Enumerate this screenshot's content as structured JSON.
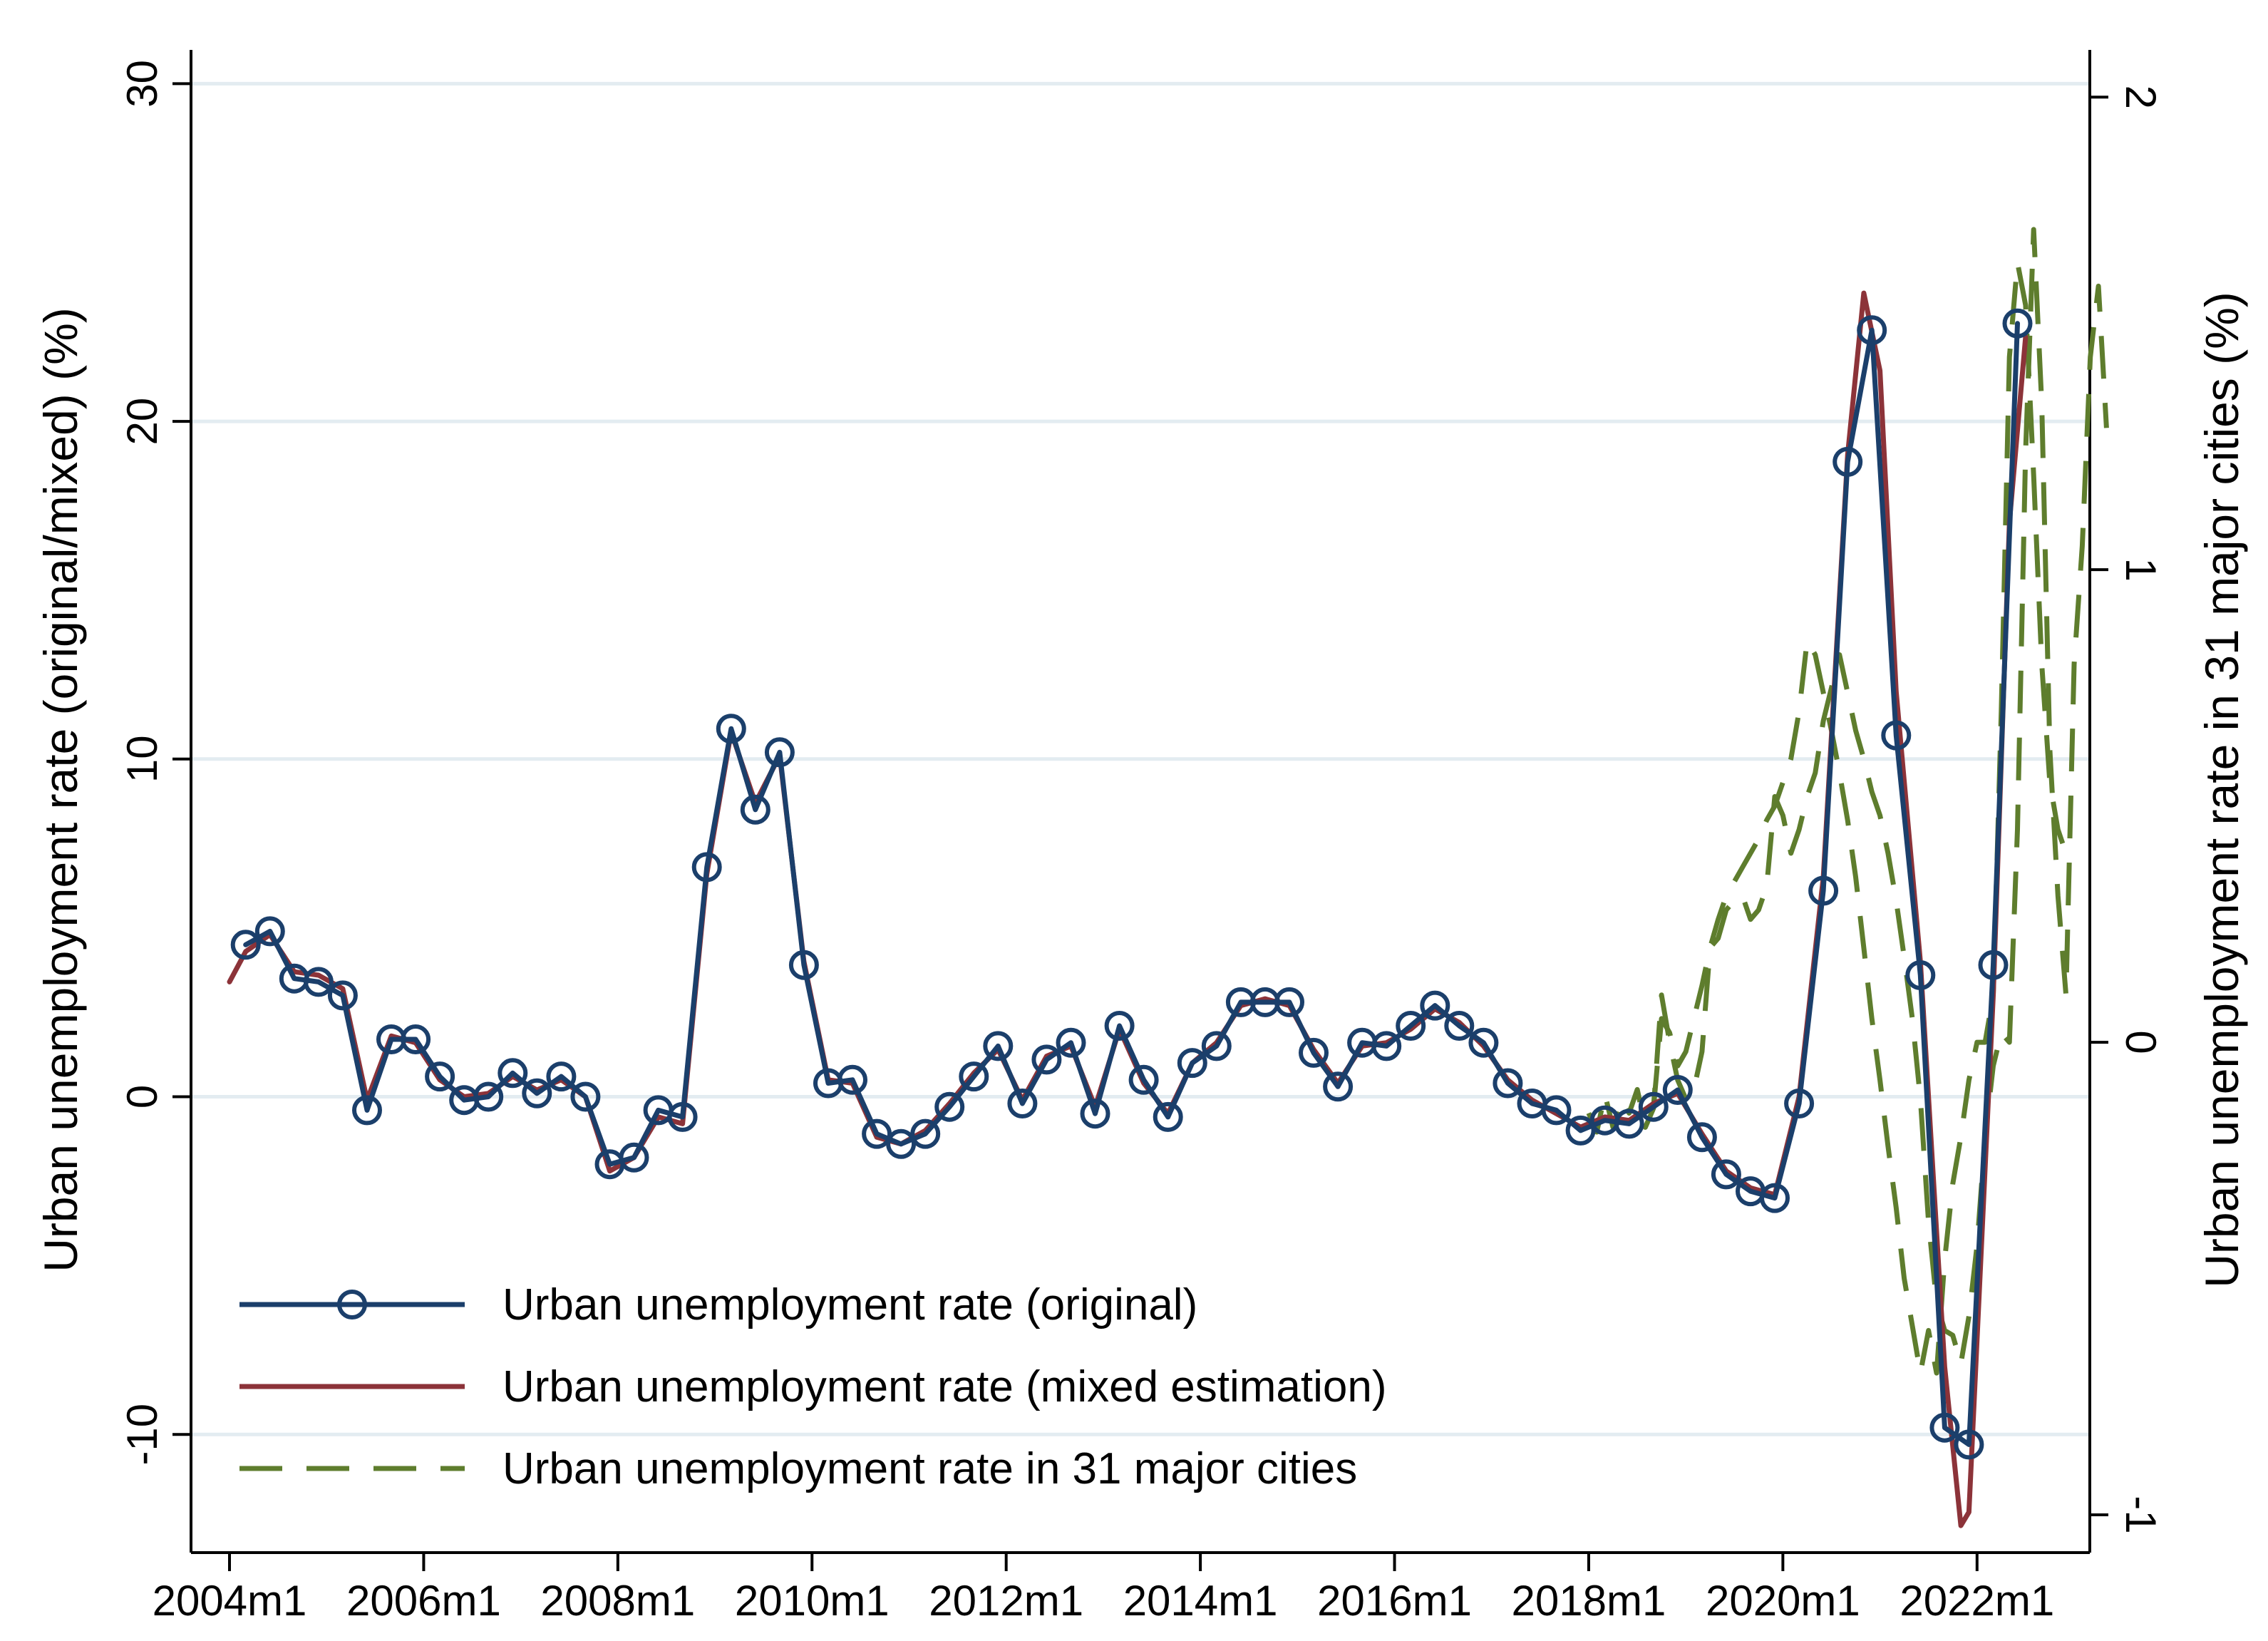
{
  "chart_data": {
    "type": "line",
    "title": "",
    "xlabel": "",
    "ylabel_left": "Urban unemployment rate (original/mixed)   (%)",
    "ylabel_right": "Urban unemployment rate in 31 major cities  (%)",
    "x_unit": "months since 2004m1 (0 = 2004m1)",
    "xlim": [
      0,
      228
    ],
    "ylim_left": [
      -13.5,
      31
    ],
    "ylim_right": [
      -1.08,
      2.1
    ],
    "x_ticks": [
      {
        "value": 0,
        "label": "2004m1"
      },
      {
        "value": 24,
        "label": "2006m1"
      },
      {
        "value": 48,
        "label": "2008m1"
      },
      {
        "value": 72,
        "label": "2010m1"
      },
      {
        "value": 96,
        "label": "2012m1"
      },
      {
        "value": 120,
        "label": "2014m1"
      },
      {
        "value": 144,
        "label": "2016m1"
      },
      {
        "value": 168,
        "label": "2018m1"
      },
      {
        "value": 192,
        "label": "2020m1"
      },
      {
        "value": 216,
        "label": "2022m1"
      }
    ],
    "y_ticks_left": [
      {
        "value": -10,
        "label": "-10"
      },
      {
        "value": 0,
        "label": "0"
      },
      {
        "value": 10,
        "label": "10"
      },
      {
        "value": 20,
        "label": "20"
      },
      {
        "value": 30,
        "label": "30"
      }
    ],
    "y_ticks_right": [
      {
        "value": -1,
        "label": "-1"
      },
      {
        "value": 0,
        "label": "0"
      },
      {
        "value": 1,
        "label": "1"
      },
      {
        "value": 2,
        "label": "2"
      }
    ],
    "grid": {
      "horizontal": true,
      "vertical": false
    },
    "legend": {
      "position": "bottom-left",
      "entries": [
        "Urban unemployment rate (original)",
        "Urban unemployment rate (mixed estimation)",
        "Urban unemployment rate in 31 major cities"
      ]
    },
    "series": [
      {
        "name": "Urban unemployment rate (original)",
        "axis": "left",
        "style": "line-with-hollow-circles",
        "color": "#1b3f6b",
        "points": [
          [
            2,
            4.5
          ],
          [
            5,
            4.9
          ],
          [
            8,
            3.5
          ],
          [
            11,
            3.4
          ],
          [
            14,
            3.0
          ],
          [
            17,
            -0.4
          ],
          [
            20,
            1.7
          ],
          [
            23,
            1.7
          ],
          [
            26,
            0.6
          ],
          [
            29,
            -0.1
          ],
          [
            32,
            0.0
          ],
          [
            35,
            0.7
          ],
          [
            38,
            0.1
          ],
          [
            41,
            0.6
          ],
          [
            44,
            0.0
          ],
          [
            47,
            -2.0
          ],
          [
            50,
            -1.8
          ],
          [
            53,
            -0.4
          ],
          [
            56,
            -0.6
          ],
          [
            59,
            6.8
          ],
          [
            62,
            10.9
          ],
          [
            65,
            8.5
          ],
          [
            68,
            10.2
          ],
          [
            71,
            3.9
          ],
          [
            74,
            0.4
          ],
          [
            77,
            0.5
          ],
          [
            80,
            -1.1
          ],
          [
            83,
            -1.4
          ],
          [
            86,
            -1.1
          ],
          [
            89,
            -0.3
          ],
          [
            92,
            0.6
          ],
          [
            95,
            1.5
          ],
          [
            98,
            -0.2
          ],
          [
            101,
            1.1
          ],
          [
            104,
            1.6
          ],
          [
            107,
            -0.5
          ],
          [
            110,
            2.1
          ],
          [
            113,
            0.5
          ],
          [
            116,
            -0.6
          ],
          [
            119,
            1.0
          ],
          [
            122,
            1.5
          ],
          [
            125,
            2.8
          ],
          [
            128,
            2.8
          ],
          [
            131,
            2.8
          ],
          [
            134,
            1.3
          ],
          [
            137,
            0.3
          ],
          [
            140,
            1.6
          ],
          [
            143,
            1.5
          ],
          [
            146,
            2.1
          ],
          [
            149,
            2.7
          ],
          [
            152,
            2.1
          ],
          [
            155,
            1.6
          ],
          [
            158,
            0.4
          ],
          [
            161,
            -0.2
          ],
          [
            164,
            -0.4
          ],
          [
            167,
            -1.0
          ],
          [
            170,
            -0.7
          ],
          [
            173,
            -0.8
          ],
          [
            176,
            -0.3
          ],
          [
            179,
            0.2
          ],
          [
            182,
            -1.2
          ],
          [
            185,
            -2.3
          ],
          [
            188,
            -2.8
          ],
          [
            191,
            -3.0
          ],
          [
            194,
            -0.2
          ],
          [
            197,
            6.1
          ],
          [
            200,
            18.8
          ],
          [
            203,
            22.7
          ],
          [
            206,
            10.7
          ],
          [
            209,
            3.6
          ],
          [
            212,
            -9.8
          ],
          [
            215,
            -10.3
          ],
          [
            218,
            3.9
          ],
          [
            221,
            22.9
          ]
        ]
      },
      {
        "name": "Urban unemployment rate (mixed estimation)",
        "axis": "left",
        "style": "solid",
        "color": "#8c3339",
        "points": [
          [
            0,
            3.4
          ],
          [
            2,
            4.3
          ],
          [
            5,
            4.8
          ],
          [
            8,
            3.7
          ],
          [
            11,
            3.6
          ],
          [
            14,
            3.2
          ],
          [
            17,
            -0.1
          ],
          [
            20,
            1.8
          ],
          [
            23,
            1.6
          ],
          [
            26,
            0.5
          ],
          [
            29,
            0.0
          ],
          [
            32,
            0.1
          ],
          [
            35,
            0.6
          ],
          [
            38,
            0.2
          ],
          [
            41,
            0.5
          ],
          [
            44,
            0.0
          ],
          [
            47,
            -2.2
          ],
          [
            50,
            -1.8
          ],
          [
            53,
            -0.6
          ],
          [
            56,
            -0.8
          ],
          [
            59,
            6.6
          ],
          [
            62,
            10.8
          ],
          [
            65,
            8.7
          ],
          [
            68,
            10.1
          ],
          [
            71,
            4.0
          ],
          [
            74,
            0.5
          ],
          [
            77,
            0.4
          ],
          [
            80,
            -1.2
          ],
          [
            83,
            -1.4
          ],
          [
            86,
            -1.0
          ],
          [
            89,
            -0.2
          ],
          [
            92,
            0.7
          ],
          [
            95,
            1.4
          ],
          [
            98,
            -0.1
          ],
          [
            101,
            1.2
          ],
          [
            104,
            1.5
          ],
          [
            107,
            -0.3
          ],
          [
            110,
            2.0
          ],
          [
            113,
            0.4
          ],
          [
            116,
            -0.5
          ],
          [
            119,
            1.0
          ],
          [
            122,
            1.6
          ],
          [
            125,
            2.7
          ],
          [
            128,
            2.9
          ],
          [
            131,
            2.7
          ],
          [
            134,
            1.4
          ],
          [
            137,
            0.4
          ],
          [
            140,
            1.5
          ],
          [
            143,
            1.6
          ],
          [
            146,
            2.0
          ],
          [
            149,
            2.6
          ],
          [
            152,
            2.2
          ],
          [
            155,
            1.5
          ],
          [
            158,
            0.5
          ],
          [
            161,
            -0.1
          ],
          [
            164,
            -0.5
          ],
          [
            167,
            -0.9
          ],
          [
            170,
            -0.6
          ],
          [
            173,
            -0.7
          ],
          [
            176,
            -0.2
          ],
          [
            179,
            0.1
          ],
          [
            182,
            -1.1
          ],
          [
            185,
            -2.2
          ],
          [
            188,
            -2.7
          ],
          [
            191,
            -2.9
          ],
          [
            194,
            0.0
          ],
          [
            197,
            6.5
          ],
          [
            200,
            19.0
          ],
          [
            202,
            23.8
          ],
          [
            204,
            21.5
          ],
          [
            206,
            12.0
          ],
          [
            209,
            4.0
          ],
          [
            212,
            -8.0
          ],
          [
            214,
            -12.7
          ],
          [
            215,
            -12.3
          ],
          [
            218,
            3.0
          ],
          [
            220,
            17.0
          ],
          [
            222,
            22.5
          ]
        ]
      },
      {
        "name": "Urban unemployment rate in 31 major cities",
        "axis": "right",
        "style": "dashed",
        "color": "#5e7d2d",
        "points": [
          [
            168,
            -0.15
          ],
          [
            169,
            -0.19
          ],
          [
            170,
            -0.11
          ],
          [
            171,
            -0.18
          ],
          [
            172,
            -0.12
          ],
          [
            173,
            -0.15
          ],
          [
            174,
            -0.1
          ],
          [
            175,
            -0.18
          ],
          [
            176,
            -0.14
          ],
          [
            177,
            0.1
          ],
          [
            178,
            0.0
          ],
          [
            179,
            -0.08
          ],
          [
            180,
            -0.12
          ],
          [
            181,
            -0.1
          ],
          [
            182,
            -0.02
          ],
          [
            183,
            0.2
          ],
          [
            184,
            0.22
          ],
          [
            185,
            0.28
          ],
          [
            186,
            0.3
          ],
          [
            187,
            0.31
          ],
          [
            188,
            0.26
          ],
          [
            189,
            0.28
          ],
          [
            190,
            0.33
          ],
          [
            191,
            0.52
          ],
          [
            192,
            0.48
          ],
          [
            193,
            0.4
          ],
          [
            194,
            0.45
          ],
          [
            195,
            0.52
          ],
          [
            196,
            0.57
          ],
          [
            197,
            0.68
          ],
          [
            198,
            0.75
          ],
          [
            199,
            0.82
          ],
          [
            200,
            0.74
          ],
          [
            201,
            0.66
          ],
          [
            202,
            0.6
          ],
          [
            203,
            0.53
          ],
          [
            204,
            0.48
          ],
          [
            205,
            0.4
          ],
          [
            206,
            0.3
          ],
          [
            207,
            0.18
          ],
          [
            208,
            0.05
          ],
          [
            209,
            -0.12
          ],
          [
            210,
            -0.38
          ],
          [
            211,
            -0.55
          ],
          [
            212,
            -0.61
          ],
          [
            213,
            -0.62
          ],
          [
            214,
            -0.68
          ],
          [
            215,
            -0.58
          ],
          [
            216,
            -0.43
          ],
          [
            217,
            -0.2
          ],
          [
            218,
            -0.05
          ],
          [
            219,
            0.02
          ],
          [
            220,
            0.0
          ],
          [
            221,
            0.45
          ],
          [
            222,
            1.25
          ],
          [
            223,
            1.72
          ],
          [
            224,
            1.35
          ],
          [
            225,
            0.62
          ],
          [
            226,
            0.31
          ],
          [
            227,
            0.1
          ],
          [
            228,
            0.8
          ],
          [
            229,
            1.05
          ],
          [
            230,
            1.45
          ],
          [
            231,
            1.6
          ],
          [
            232,
            1.3
          ]
        ]
      },
      {
        "name": "",
        "axis": "right",
        "style": "dashed",
        "color": "#5e7d2d",
        "points": [
          [
            176,
            -0.14
          ],
          [
            177,
            0.05
          ],
          [
            178,
            0.02
          ],
          [
            179,
            -0.05
          ],
          [
            180,
            -0.02
          ],
          [
            181,
            0.05
          ],
          [
            182,
            0.12
          ],
          [
            183,
            0.2
          ],
          [
            184,
            0.26
          ],
          [
            185,
            0.31
          ],
          [
            186,
            0.34
          ],
          [
            187,
            0.37
          ],
          [
            188,
            0.4
          ],
          [
            189,
            0.43
          ],
          [
            190,
            0.47
          ],
          [
            191,
            0.5
          ],
          [
            192,
            0.55
          ],
          [
            193,
            0.6
          ],
          [
            194,
            0.7
          ],
          [
            195,
            0.85
          ],
          [
            196,
            0.82
          ],
          [
            197,
            0.74
          ],
          [
            198,
            0.66
          ],
          [
            199,
            0.57
          ],
          [
            200,
            0.47
          ],
          [
            201,
            0.35
          ],
          [
            202,
            0.2
          ],
          [
            203,
            0.05
          ],
          [
            204,
            -0.08
          ],
          [
            205,
            -0.22
          ],
          [
            206,
            -0.35
          ],
          [
            207,
            -0.5
          ],
          [
            208,
            -0.6
          ],
          [
            209,
            -0.7
          ],
          [
            210,
            -0.61
          ],
          [
            211,
            -0.7
          ],
          [
            212,
            -0.46
          ],
          [
            213,
            -0.3
          ],
          [
            214,
            -0.2
          ],
          [
            215,
            -0.08
          ],
          [
            216,
            0.0
          ],
          [
            217,
            0.0
          ],
          [
            218,
            0.1
          ],
          [
            219,
            0.7
          ],
          [
            220,
            1.45
          ],
          [
            221,
            1.65
          ],
          [
            222,
            1.56
          ],
          [
            223,
            1.2
          ],
          [
            224,
            0.8
          ],
          [
            225,
            0.55
          ],
          [
            226,
            0.45
          ],
          [
            227,
            0.4
          ]
        ]
      }
    ]
  }
}
